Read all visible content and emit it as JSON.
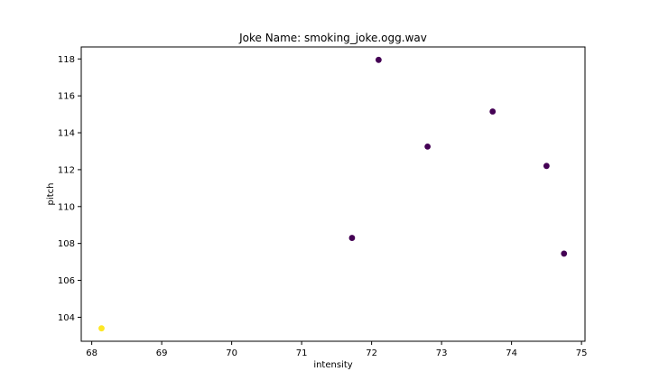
{
  "chart_data": {
    "type": "scatter",
    "title": "Joke Name: smoking_joke.ogg.wav",
    "xlabel": "intensity",
    "ylabel": "pitch",
    "xlim": [
      67.85,
      75.05
    ],
    "ylim": [
      102.7,
      118.65
    ],
    "xticks": [
      68,
      69,
      70,
      71,
      72,
      73,
      74,
      75
    ],
    "yticks": [
      104,
      106,
      108,
      110,
      112,
      114,
      116,
      118
    ],
    "grid": false,
    "legend": "none",
    "colors": {
      "dark": "#440154",
      "light": "#fde725"
    },
    "points": [
      {
        "x": 68.14,
        "y": 103.4,
        "color": "#fde725"
      },
      {
        "x": 71.72,
        "y": 108.3,
        "color": "#440154"
      },
      {
        "x": 72.1,
        "y": 117.95,
        "color": "#440154"
      },
      {
        "x": 72.8,
        "y": 113.25,
        "color": "#440154"
      },
      {
        "x": 73.73,
        "y": 115.15,
        "color": "#440154"
      },
      {
        "x": 74.5,
        "y": 112.2,
        "color": "#440154"
      },
      {
        "x": 74.75,
        "y": 107.45,
        "color": "#440154"
      }
    ]
  }
}
